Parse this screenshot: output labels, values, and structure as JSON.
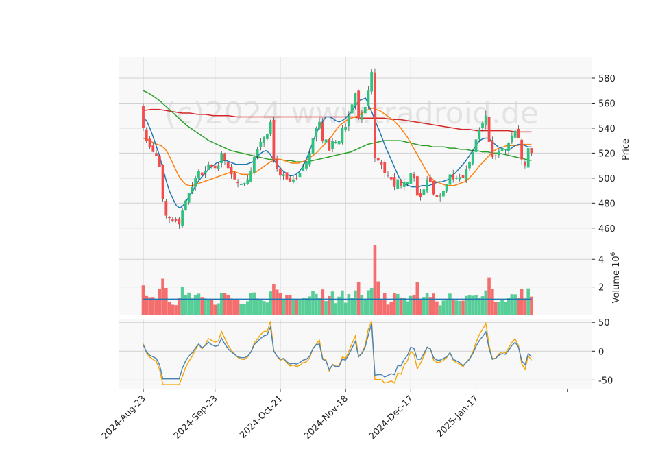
{
  "watermark": "(c)2024 www.tradroid.de",
  "colors": {
    "up": "#2ec27e",
    "down": "#f44b4b",
    "ma_short": "#1f77b4",
    "ma_mid": "#ff7f0e",
    "ma_long": "#2ca02c",
    "ma_200": "#d62728",
    "osc_a": "#4682b4",
    "osc_b": "#f5a300",
    "panel_bg": "#f8f8f8",
    "grid": "#d0d0d0"
  },
  "chart_data": {
    "type": "candlestick",
    "x_tick_labels": [
      "2024-Aug-23",
      "2024-Sep-23",
      "2024-Oct-21",
      "2024-Nov-18",
      "2024-Dec-17",
      "2025-Jan-17"
    ],
    "x_tick_index": [
      0,
      22,
      42,
      62,
      82,
      102
    ],
    "price_panel": {
      "ylabel": "Price",
      "yticks": [
        460,
        480,
        500,
        520,
        540,
        560,
        580
      ],
      "ylim": [
        450,
        597
      ],
      "close": [
        540,
        530,
        525,
        521,
        518,
        509,
        483,
        470,
        468,
        466,
        466,
        463,
        474,
        482,
        488,
        493,
        500,
        506,
        502,
        506,
        511,
        509,
        508,
        510,
        520,
        514,
        508,
        503,
        499,
        496,
        495,
        496,
        499,
        506,
        517,
        523,
        529,
        533,
        535,
        545,
        514,
        507,
        502,
        503,
        499,
        497,
        499,
        500,
        504,
        509,
        513,
        520,
        532,
        540,
        545,
        530,
        531,
        522,
        530,
        529,
        530,
        540,
        541,
        550,
        559,
        568,
        548,
        551,
        557,
        570,
        585,
        516,
        514,
        511,
        504,
        502,
        499,
        493,
        499,
        494,
        497,
        497,
        504,
        500,
        486,
        485,
        491,
        499,
        497,
        487,
        485,
        486,
        490,
        495,
        503,
        499,
        500,
        501,
        500,
        507,
        513,
        521,
        531,
        539,
        544,
        550,
        529,
        517,
        518,
        522,
        524,
        523,
        528,
        534,
        538,
        532,
        515,
        510,
        524,
        520
      ],
      "ma_short": [
        548,
        546,
        540,
        533,
        525,
        517,
        507,
        497,
        489,
        483,
        478,
        476,
        478,
        482,
        486,
        490,
        495,
        499,
        502,
        505,
        508,
        510,
        512,
        513,
        514,
        514,
        513,
        512,
        511,
        511,
        511,
        511,
        512,
        513,
        516,
        519,
        521,
        522,
        520,
        516,
        512,
        509,
        506,
        504,
        502,
        502,
        503,
        505,
        509,
        514,
        521,
        528,
        535,
        541,
        545,
        549,
        549,
        548,
        546,
        545,
        546,
        548,
        551,
        554,
        558,
        562,
        563,
        564,
        558,
        552,
        545,
        539,
        532,
        525,
        519,
        513,
        507,
        501,
        497,
        495,
        494,
        493,
        493,
        493,
        494,
        494,
        494,
        495,
        496,
        497,
        497,
        498,
        499,
        502,
        504,
        507,
        510,
        513,
        517,
        521,
        525,
        529,
        531,
        532,
        532,
        530,
        527,
        525,
        524,
        523,
        522,
        524,
        526,
        527,
        527,
        526,
        525,
        525
      ],
      "ma_mid": [
        532,
        531,
        530,
        528,
        527,
        526,
        524,
        520,
        514,
        508,
        502,
        498,
        495,
        494,
        494,
        495,
        496,
        497,
        498,
        499,
        500,
        501,
        502,
        503,
        504,
        505,
        505,
        504,
        503,
        503,
        503,
        504,
        505,
        507,
        509,
        511,
        513,
        514,
        515,
        515,
        514,
        513,
        512,
        512,
        512,
        513,
        514,
        516,
        518,
        520,
        523,
        526,
        529,
        532,
        536,
        540,
        543,
        545,
        547,
        548,
        549,
        550,
        552,
        554,
        555,
        556,
        555,
        554,
        552,
        550,
        548,
        546,
        543,
        540,
        536,
        532,
        527,
        522,
        517,
        512,
        507,
        502,
        499,
        497,
        496,
        495,
        494,
        494,
        494,
        495,
        496,
        497,
        499,
        502,
        505,
        509,
        512,
        515,
        518,
        521,
        523,
        524,
        525,
        526,
        526,
        526,
        526,
        527,
        527,
        527,
        527
      ],
      "ma_long": [
        570,
        568,
        565,
        562,
        558,
        554,
        550,
        546,
        542,
        539,
        536,
        533,
        530,
        528,
        526,
        524,
        522,
        521,
        520,
        519,
        518,
        517,
        516,
        515,
        515,
        515,
        514,
        514,
        513,
        513,
        513,
        514,
        515,
        516,
        517,
        518,
        519,
        520,
        521,
        523,
        525,
        527,
        528,
        529,
        530,
        530,
        530,
        530,
        529,
        528,
        527,
        526,
        526,
        525,
        525,
        525,
        524,
        524,
        523,
        523,
        522,
        522,
        521,
        521,
        520,
        520,
        519,
        518,
        517,
        516,
        515,
        514
      ],
      "ma_200": [
        554,
        555,
        555,
        554,
        553,
        552,
        552,
        551,
        551,
        550,
        550,
        550,
        549,
        549,
        549,
        549,
        549,
        549,
        549,
        549,
        549,
        549,
        549,
        549,
        549,
        549,
        549,
        549,
        548,
        548,
        548,
        548,
        547,
        547,
        546,
        545,
        544,
        543,
        542,
        541,
        540,
        539,
        539,
        538,
        538,
        538,
        538,
        538,
        537,
        537,
        537
      ]
    },
    "volume_panel": {
      "ylabel": "Volume  10^6",
      "yticks": [
        2,
        4
      ],
      "ylim": [
        0,
        5.3
      ],
      "avg_volume": 1.12
    },
    "oscillator_panel": {
      "yticks": [
        -50,
        0,
        50
      ],
      "ylim": [
        -65,
        55
      ]
    }
  }
}
